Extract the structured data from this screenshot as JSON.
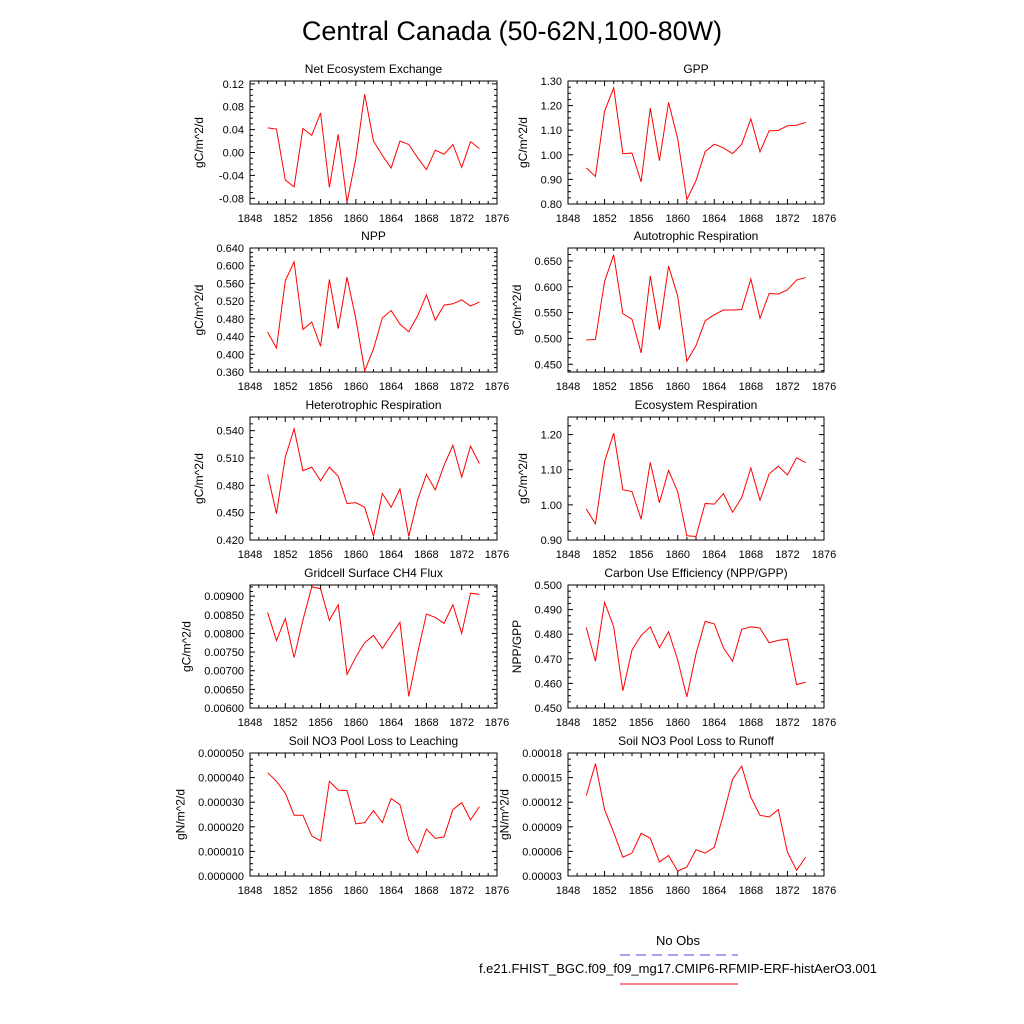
{
  "title": "Central Canada (50-62N,100-80W)",
  "legend": {
    "entries": [
      {
        "label": "No Obs",
        "color": "#4444dd",
        "dashed": true
      },
      {
        "label": "f.e21.FHIST_BGC.f09_f09_mg17.CMIP6-RFMIP-ERF-histAerO3.001",
        "color": "#e8303a",
        "dashed": false
      }
    ]
  },
  "colors": {
    "series": "#ff0000",
    "obs": "#4444dd"
  },
  "chart_data": [
    {
      "type": "line",
      "title": "Net Ecosystem Exchange",
      "ylabel": "gC/m^2/d",
      "xlim": [
        1848,
        1876
      ],
      "ylim": [
        -0.09,
        0.125
      ],
      "xticks": [
        1848,
        1852,
        1856,
        1860,
        1864,
        1868,
        1872,
        1876
      ],
      "yticks": [
        "-0.08",
        "-0.04",
        "0.00",
        "0.04",
        "0.08",
        "0.12"
      ],
      "x": [
        1850,
        1851,
        1852,
        1853,
        1854,
        1855,
        1856,
        1857,
        1858,
        1859,
        1860,
        1861,
        1862,
        1863,
        1864,
        1865,
        1866,
        1867,
        1868,
        1869,
        1870,
        1871,
        1872,
        1873,
        1874
      ],
      "series": [
        {
          "values": [
            0.043,
            0.041,
            -0.048,
            -0.06,
            0.042,
            0.03,
            0.069,
            -0.061,
            0.032,
            -0.087,
            -0.01,
            0.102,
            0.02,
            -0.005,
            -0.027,
            0.02,
            0.014,
            -0.009,
            -0.03,
            0.004,
            -0.003,
            0.014,
            -0.026,
            0.019,
            0.007
          ]
        }
      ]
    },
    {
      "type": "line",
      "title": "GPP",
      "ylabel": "gC/m^2/d",
      "xlim": [
        1848,
        1876
      ],
      "ylim": [
        0.8,
        1.3
      ],
      "xticks": [
        1848,
        1852,
        1856,
        1860,
        1864,
        1868,
        1872,
        1876
      ],
      "yticks": [
        "0.80",
        "0.90",
        "1.00",
        "1.10",
        "1.20",
        "1.30"
      ],
      "x": [
        1850,
        1851,
        1852,
        1853,
        1854,
        1855,
        1856,
        1857,
        1858,
        1859,
        1860,
        1861,
        1862,
        1863,
        1864,
        1865,
        1866,
        1867,
        1868,
        1869,
        1870,
        1871,
        1872,
        1873,
        1874
      ],
      "series": [
        {
          "values": [
            0.947,
            0.912,
            1.177,
            1.272,
            1.005,
            1.007,
            0.89,
            1.19,
            0.976,
            1.213,
            1.065,
            0.818,
            0.895,
            1.013,
            1.043,
            1.028,
            1.005,
            1.043,
            1.146,
            1.012,
            1.098,
            1.099,
            1.118,
            1.12,
            1.132
          ]
        }
      ]
    },
    {
      "type": "line",
      "title": "NPP",
      "ylabel": "gC/m^2/d",
      "xlim": [
        1848,
        1876
      ],
      "ylim": [
        0.36,
        0.64
      ],
      "xticks": [
        1848,
        1852,
        1856,
        1860,
        1864,
        1868,
        1872,
        1876
      ],
      "yticks": [
        "0.360",
        "0.400",
        "0.440",
        "0.480",
        "0.520",
        "0.560",
        "0.600",
        "0.640"
      ],
      "x": [
        1850,
        1851,
        1852,
        1853,
        1854,
        1855,
        1856,
        1857,
        1858,
        1859,
        1860,
        1861,
        1862,
        1863,
        1864,
        1865,
        1866,
        1867,
        1868,
        1869,
        1870,
        1871,
        1872,
        1873,
        1874
      ],
      "series": [
        {
          "values": [
            0.45,
            0.414,
            0.566,
            0.609,
            0.456,
            0.473,
            0.418,
            0.569,
            0.458,
            0.574,
            0.48,
            0.363,
            0.412,
            0.482,
            0.499,
            0.468,
            0.451,
            0.487,
            0.534,
            0.477,
            0.511,
            0.514,
            0.523,
            0.509,
            0.518
          ]
        }
      ]
    },
    {
      "type": "line",
      "title": "Autotrophic Respiration",
      "ylabel": "gC/m^2/d",
      "xlim": [
        1848,
        1876
      ],
      "ylim": [
        0.435,
        0.675
      ],
      "xticks": [
        1848,
        1852,
        1856,
        1860,
        1864,
        1868,
        1872,
        1876
      ],
      "yticks": [
        "0.450",
        "0.500",
        "0.550",
        "0.600",
        "0.650"
      ],
      "x": [
        1850,
        1851,
        1852,
        1853,
        1854,
        1855,
        1856,
        1857,
        1858,
        1859,
        1860,
        1861,
        1862,
        1863,
        1864,
        1865,
        1866,
        1867,
        1868,
        1869,
        1870,
        1871,
        1872,
        1873,
        1874
      ],
      "series": [
        {
          "values": [
            0.497,
            0.498,
            0.61,
            0.662,
            0.548,
            0.537,
            0.472,
            0.621,
            0.517,
            0.64,
            0.582,
            0.456,
            0.486,
            0.534,
            0.546,
            0.555,
            0.555,
            0.556,
            0.615,
            0.539,
            0.587,
            0.586,
            0.594,
            0.613,
            0.618
          ]
        }
      ]
    },
    {
      "type": "line",
      "title": "Heterotrophic Respiration",
      "ylabel": "gC/m^2/d",
      "xlim": [
        1848,
        1876
      ],
      "ylim": [
        0.42,
        0.555
      ],
      "xticks": [
        1848,
        1852,
        1856,
        1860,
        1864,
        1868,
        1872,
        1876
      ],
      "yticks": [
        "0.420",
        "0.450",
        "0.480",
        "0.510",
        "0.540"
      ],
      "x": [
        1850,
        1851,
        1852,
        1853,
        1854,
        1855,
        1856,
        1857,
        1858,
        1859,
        1860,
        1861,
        1862,
        1863,
        1864,
        1865,
        1866,
        1867,
        1868,
        1869,
        1870,
        1871,
        1872,
        1873,
        1874
      ],
      "series": [
        {
          "values": [
            0.492,
            0.449,
            0.511,
            0.542,
            0.496,
            0.5,
            0.485,
            0.5,
            0.49,
            0.46,
            0.461,
            0.456,
            0.424,
            0.471,
            0.456,
            0.476,
            0.424,
            0.464,
            0.492,
            0.475,
            0.502,
            0.524,
            0.489,
            0.523,
            0.504
          ]
        }
      ]
    },
    {
      "type": "line",
      "title": "Ecosystem Respiration",
      "ylabel": "gC/m^2/d",
      "xlim": [
        1848,
        1876
      ],
      "ylim": [
        0.9,
        1.25
      ],
      "xticks": [
        1848,
        1852,
        1856,
        1860,
        1864,
        1868,
        1872,
        1876
      ],
      "yticks": [
        "0.90",
        "1.00",
        "1.10",
        "1.20"
      ],
      "x": [
        1850,
        1851,
        1852,
        1853,
        1854,
        1855,
        1856,
        1857,
        1858,
        1859,
        1860,
        1861,
        1862,
        1863,
        1864,
        1865,
        1866,
        1867,
        1868,
        1869,
        1870,
        1871,
        1872,
        1873,
        1874
      ],
      "series": [
        {
          "values": [
            0.988,
            0.946,
            1.123,
            1.204,
            1.043,
            1.038,
            0.959,
            1.121,
            1.006,
            1.098,
            1.037,
            0.912,
            0.91,
            1.004,
            1.002,
            1.032,
            0.979,
            1.021,
            1.105,
            1.013,
            1.088,
            1.11,
            1.085,
            1.134,
            1.12
          ]
        }
      ]
    },
    {
      "type": "line",
      "title": "Gridcell Surface CH4 Flux",
      "ylabel": "gC/m^2/d",
      "xlim": [
        1848,
        1876
      ],
      "ylim": [
        0.006,
        0.0093
      ],
      "xticks": [
        1848,
        1852,
        1856,
        1860,
        1864,
        1868,
        1872,
        1876
      ],
      "yticks": [
        "0.00600",
        "0.00650",
        "0.00700",
        "0.00750",
        "0.00800",
        "0.00850",
        "0.00900"
      ],
      "x": [
        1850,
        1851,
        1852,
        1853,
        1854,
        1855,
        1856,
        1857,
        1858,
        1859,
        1860,
        1861,
        1862,
        1863,
        1864,
        1865,
        1866,
        1867,
        1868,
        1869,
        1870,
        1871,
        1872,
        1873,
        1874
      ],
      "series": [
        {
          "values": [
            0.00856,
            0.00781,
            0.0084,
            0.00735,
            0.00836,
            0.00925,
            0.0092,
            0.00835,
            0.00877,
            0.0069,
            0.00737,
            0.00775,
            0.00795,
            0.0076,
            0.00795,
            0.0083,
            0.00631,
            0.00747,
            0.00852,
            0.00843,
            0.00827,
            0.00877,
            0.008,
            0.00908,
            0.00905
          ]
        }
      ]
    },
    {
      "type": "line",
      "title": "Carbon Use Efficiency (NPP/GPP)",
      "ylabel": "NPP/GPP",
      "xlim": [
        1848,
        1876
      ],
      "ylim": [
        0.45,
        0.5
      ],
      "xticks": [
        1848,
        1852,
        1856,
        1860,
        1864,
        1868,
        1872,
        1876
      ],
      "yticks": [
        "0.450",
        "0.460",
        "0.470",
        "0.480",
        "0.490",
        "0.500"
      ],
      "x": [
        1850,
        1851,
        1852,
        1853,
        1854,
        1855,
        1856,
        1857,
        1858,
        1859,
        1860,
        1861,
        1862,
        1863,
        1864,
        1865,
        1866,
        1867,
        1868,
        1869,
        1870,
        1871,
        1872,
        1873,
        1874
      ],
      "series": [
        {
          "values": [
            0.4827,
            0.469,
            0.493,
            0.483,
            0.457,
            0.4735,
            0.4795,
            0.483,
            0.4745,
            0.481,
            0.4695,
            0.4545,
            0.472,
            0.4852,
            0.4842,
            0.4745,
            0.469,
            0.482,
            0.483,
            0.4825,
            0.4765,
            0.4775,
            0.478,
            0.4595,
            0.4605
          ]
        }
      ]
    },
    {
      "type": "line",
      "title": "Soil NO3 Pool Loss to Leaching",
      "ylabel": "gN/m^2/d",
      "xlim": [
        1848,
        1876
      ],
      "ylim": [
        0.0,
        5e-05
      ],
      "xticks": [
        1848,
        1852,
        1856,
        1860,
        1864,
        1868,
        1872,
        1876
      ],
      "yticks": [
        "0.000000",
        "0.000010",
        "0.000020",
        "0.000030",
        "0.000040",
        "0.000050"
      ],
      "x": [
        1850,
        1851,
        1852,
        1853,
        1854,
        1855,
        1856,
        1857,
        1858,
        1859,
        1860,
        1861,
        1862,
        1863,
        1864,
        1865,
        1866,
        1867,
        1868,
        1869,
        1870,
        1871,
        1872,
        1873,
        1874
      ],
      "series": [
        {
          "values": [
            4.2e-05,
            3.85e-05,
            3.37e-05,
            2.47e-05,
            2.47e-05,
            1.63e-05,
            1.43e-05,
            3.85e-05,
            3.49e-05,
            3.47e-05,
            2.12e-05,
            2.17e-05,
            2.66e-05,
            2.17e-05,
            3.15e-05,
            2.9e-05,
            1.48e-05,
            9.4e-06,
            1.91e-05,
            1.53e-05,
            1.59e-05,
            2.7e-05,
            2.98e-05,
            2.28e-05,
            2.82e-05
          ]
        }
      ]
    },
    {
      "type": "line",
      "title": "Soil NO3 Pool Loss to Runoff",
      "ylabel": "gN/m^2/d",
      "xlim": [
        1848,
        1876
      ],
      "ylim": [
        3e-05,
        0.00018
      ],
      "xticks": [
        1848,
        1852,
        1856,
        1860,
        1864,
        1868,
        1872,
        1876
      ],
      "yticks": [
        "0.00003",
        "0.00006",
        "0.00009",
        "0.00012",
        "0.00015",
        "0.00018"
      ],
      "x": [
        1850,
        1851,
        1852,
        1853,
        1854,
        1855,
        1856,
        1857,
        1858,
        1859,
        1860,
        1861,
        1862,
        1863,
        1864,
        1865,
        1866,
        1867,
        1868,
        1869,
        1870,
        1871,
        1872,
        1873,
        1874
      ],
      "series": [
        {
          "values": [
            0.000128,
            0.000167,
            0.000111,
            8.3e-05,
            5.3e-05,
            5.8e-05,
            8.2e-05,
            7.6e-05,
            4.7e-05,
            5.5e-05,
            3.6e-05,
            4.1e-05,
            6.2e-05,
            5.8e-05,
            6.5e-05,
            0.000105,
            0.000148,
            0.000164,
            0.000126,
            0.000104,
            0.000102,
            0.000111,
            5.9e-05,
            3.7e-05,
            5.3e-05
          ]
        }
      ]
    }
  ]
}
